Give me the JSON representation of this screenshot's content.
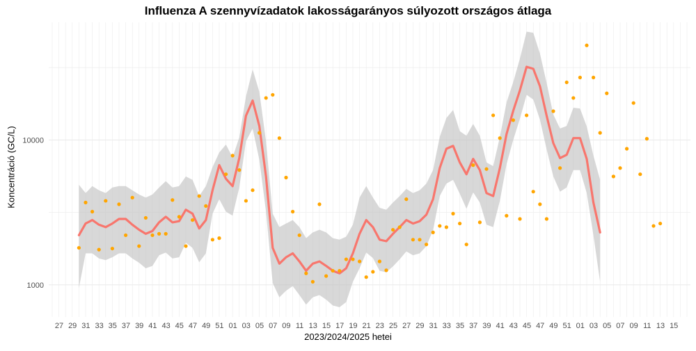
{
  "chart_data": {
    "type": "line",
    "title": "Influenza A szennyvízadatok lakosságarányos súlyozott országos átlaga",
    "xlabel": "2023/2024/2025 hetei",
    "ylabel": "Koncentráció (GC/L)",
    "y_scale": "log10",
    "ylim": [
      600,
      65000
    ],
    "y_ticks": [
      1000,
      10000
    ],
    "y_tick_labels": [
      "1000",
      "10000"
    ],
    "x_tick_labels": [
      "27",
      "29",
      "31",
      "33",
      "35",
      "37",
      "39",
      "41",
      "43",
      "45",
      "47",
      "49",
      "51",
      "01",
      "03",
      "05",
      "07",
      "09",
      "11",
      "13",
      "15",
      "17",
      "19",
      "21",
      "23",
      "25",
      "27",
      "29",
      "31",
      "33",
      "35",
      "37",
      "39",
      "41",
      "43",
      "45",
      "47",
      "49",
      "51",
      "01",
      "03",
      "05",
      "07",
      "09",
      "11",
      "13",
      "15"
    ],
    "grid": true,
    "colors": {
      "smooth_line": "#F8766D",
      "points": "#FFA500",
      "ribbon": "#BEBEBE",
      "grid": "#EBEBEB"
    },
    "series": [
      {
        "kind": "points",
        "values": [
          1800,
          3700,
          3200,
          1750,
          3800,
          1780,
          3600,
          2200,
          4000,
          1850,
          2900,
          2200,
          2250,
          2250,
          3850,
          2950,
          1850,
          2800,
          4100,
          3500,
          2050,
          2100,
          5800,
          7800,
          6200,
          3800,
          4500,
          11200,
          19500,
          20500,
          10300,
          5500,
          3200,
          2200,
          1200,
          1050,
          3600,
          1150,
          1250,
          1250,
          1500,
          1500,
          1450,
          1130,
          1230,
          1450,
          1260,
          2400,
          2500,
          3900,
          2050,
          2050,
          1900,
          2300,
          2550,
          2500,
          3100,
          2650,
          1900,
          6700,
          2700,
          6300,
          14800,
          10300,
          3000,
          13700,
          2850,
          14800,
          4400,
          3600,
          2850,
          15800,
          6400,
          25000,
          19500,
          27000,
          45000,
          27000,
          11200,
          21000,
          5600,
          6400,
          8700,
          18000,
          5800,
          10200,
          2550,
          2650
        ]
      },
      {
        "kind": "smooth",
        "values": [
          2200,
          2650,
          2800,
          2600,
          2500,
          2650,
          2850,
          2850,
          2600,
          2400,
          2250,
          2350,
          2700,
          2950,
          2700,
          2750,
          3300,
          3100,
          2450,
          2800,
          4500,
          6700,
          5400,
          4800,
          7500,
          14700,
          18700,
          12500,
          5600,
          1800,
          1400,
          1550,
          1650,
          1450,
          1250,
          1400,
          1450,
          1350,
          1250,
          1200,
          1300,
          1650,
          2250,
          2800,
          2500,
          2050,
          2000,
          2250,
          2500,
          2800,
          2650,
          2750,
          3050,
          3900,
          6400,
          8700,
          9100,
          7000,
          5800,
          7400,
          6200,
          4300,
          4100,
          6400,
          11000,
          15900,
          22000,
          32000,
          31000,
          23500,
          14700,
          9500,
          7500,
          7900,
          10300,
          10300,
          7400,
          3700,
          2300
        ]
      },
      {
        "kind": "band_upper",
        "values": [
          4900,
          4300,
          4800,
          4500,
          4300,
          4700,
          4800,
          4800,
          4500,
          4200,
          4000,
          4200,
          4700,
          5200,
          4700,
          4800,
          5600,
          5300,
          4100,
          4800,
          6500,
          8200,
          9300,
          7600,
          10400,
          20000,
          30700,
          21500,
          9800,
          3100,
          2500,
          2650,
          2800,
          2500,
          2100,
          2300,
          2400,
          2300,
          2100,
          2050,
          2150,
          2600,
          4000,
          4800,
          4000,
          3400,
          3300,
          3700,
          4100,
          4600,
          4300,
          4500,
          5000,
          6200,
          10500,
          14200,
          16100,
          11500,
          10700,
          12900,
          10700,
          7000,
          6600,
          10500,
          18200,
          25100,
          36500,
          56000,
          55000,
          39500,
          24800,
          15000,
          12000,
          12500,
          16700,
          16500,
          12400,
          7800,
          5300
        ]
      },
      {
        "kind": "band_lower",
        "values": [
          950,
          1650,
          1650,
          1520,
          1480,
          1550,
          1650,
          1650,
          1520,
          1420,
          1300,
          1350,
          1600,
          1670,
          1520,
          1550,
          1950,
          1800,
          1430,
          1650,
          3100,
          3900,
          3200,
          3000,
          4700,
          9800,
          12000,
          7300,
          3200,
          1030,
          820,
          910,
          980,
          850,
          730,
          820,
          850,
          790,
          720,
          700,
          760,
          1050,
          1300,
          1670,
          1530,
          1250,
          1220,
          1340,
          1500,
          1700,
          1600,
          1650,
          1850,
          2380,
          4100,
          5000,
          5300,
          4250,
          3350,
          4350,
          3700,
          2600,
          2500,
          3800,
          6800,
          10000,
          14000,
          20500,
          19000,
          13800,
          8600,
          5600,
          4400,
          4700,
          6200,
          6200,
          4300,
          2200,
          1050
        ]
      }
    ]
  }
}
